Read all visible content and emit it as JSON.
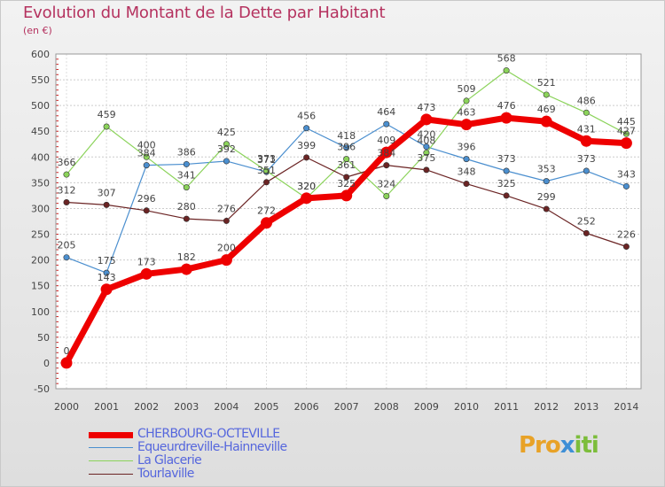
{
  "title": "Evolution du Montant de la Dette par Habitant",
  "subtitle": "(en €)",
  "logo": {
    "part1": "Pro",
    "part2": "x",
    "part3": "iti"
  },
  "chart_data": {
    "type": "line",
    "title": "Evolution du Montant de la Dette par Habitant",
    "ylabel": "(en €)",
    "x": [
      "2000",
      "2001",
      "2002",
      "2003",
      "2004",
      "2005",
      "2006",
      "2007",
      "2008",
      "2009",
      "2010",
      "2011",
      "2012",
      "2013",
      "2014"
    ],
    "ylim": [
      -50,
      600
    ],
    "yticks": [
      -50,
      0,
      50,
      100,
      150,
      200,
      250,
      300,
      350,
      400,
      450,
      500,
      550,
      600
    ],
    "grid": true,
    "legend_position": "bottom-left",
    "series": [
      {
        "name": "CHERBOURG-OCTEVILLE",
        "color": "#ee0000",
        "values": [
          0,
          143,
          173,
          182,
          200,
          272,
          320,
          325,
          409,
          473,
          463,
          476,
          469,
          431,
          427
        ]
      },
      {
        "name": "Equeurdreville-Hainneville",
        "color": "#4b8fcf",
        "values": [
          205,
          175,
          384,
          386,
          392,
          371,
          456,
          418,
          464,
          420,
          396,
          373,
          353,
          373,
          343
        ]
      },
      {
        "name": "La Glacerie",
        "color": "#8bd35a",
        "values": [
          366,
          459,
          400,
          341,
          425,
          373,
          320,
          396,
          324,
          408,
          509,
          568,
          521,
          486,
          445
        ]
      },
      {
        "name": "Tourlaville",
        "color": "#6b2424",
        "values": [
          312,
          307,
          296,
          280,
          276,
          351,
          399,
          361,
          384,
          375,
          348,
          325,
          299,
          252,
          226
        ]
      }
    ]
  }
}
